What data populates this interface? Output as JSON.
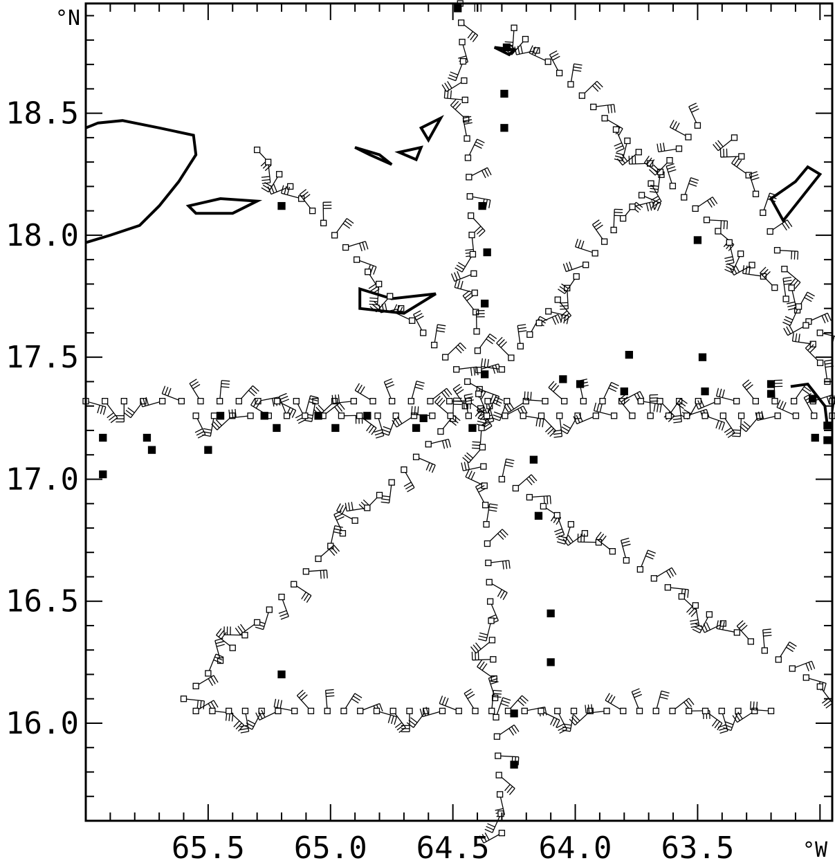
{
  "axes": {
    "x_unit": "°W",
    "y_unit": "°N",
    "x_ticks": [
      {
        "value": 65.5,
        "label": "65.5"
      },
      {
        "value": 65.0,
        "label": "65.0"
      },
      {
        "value": 64.5,
        "label": "64.5"
      },
      {
        "value": 64.0,
        "label": "64.0"
      },
      {
        "value": 63.5,
        "label": "63.5"
      }
    ],
    "y_ticks": [
      {
        "value": 18.5,
        "label": "18.5"
      },
      {
        "value": 18.0,
        "label": "18.0"
      },
      {
        "value": 17.5,
        "label": "17.5"
      },
      {
        "value": 17.0,
        "label": "17.0"
      },
      {
        "value": 16.5,
        "label": "16.5"
      },
      {
        "value": 16.0,
        "label": "16.0"
      }
    ],
    "lon_range": [
      66.0,
      62.95
    ],
    "lat_range": [
      15.6,
      18.95
    ]
  },
  "flight_legs": [
    {
      "name": "north-south",
      "from": [
        64.47,
        18.95
      ],
      "to": [
        64.3,
        15.55
      ],
      "n": 44
    },
    {
      "name": "northwest-diagonal",
      "from": [
        65.3,
        18.35
      ],
      "to": [
        64.35,
        17.3
      ],
      "n": 22
    },
    {
      "name": "northeast-upper-diagonal",
      "from": [
        64.25,
        18.85
      ],
      "to": [
        63.0,
        17.6
      ],
      "n": 28
    },
    {
      "name": "northeast-right-diagonal",
      "from": [
        63.35,
        18.4
      ],
      "to": [
        62.97,
        17.4
      ],
      "n": 14
    },
    {
      "name": "central-northeast",
      "from": [
        64.3,
        17.45
      ],
      "to": [
        63.5,
        18.45
      ],
      "n": 22
    },
    {
      "name": "southwest-diagonal",
      "from": [
        64.45,
        17.3
      ],
      "to": [
        65.6,
        16.1
      ],
      "n": 24
    },
    {
      "name": "southeast-diagonal",
      "from": [
        64.3,
        17.0
      ],
      "to": [
        63.0,
        16.15
      ],
      "n": 24
    },
    {
      "name": "southern-west-east",
      "from": [
        65.55,
        16.05
      ],
      "to": [
        63.2,
        16.05
      ],
      "n": 36
    },
    {
      "name": "east-west-upper",
      "from": [
        66.0,
        17.32
      ],
      "to": [
        62.95,
        17.32
      ],
      "n": 40
    },
    {
      "name": "east-west-lower",
      "from": [
        65.55,
        17.26
      ],
      "to": [
        62.95,
        17.26
      ],
      "n": 36
    }
  ],
  "dropsondes": [
    [
      64.48,
      18.93
    ],
    [
      64.28,
      18.77
    ],
    [
      64.29,
      18.58
    ],
    [
      64.29,
      18.44
    ],
    [
      65.2,
      18.12
    ],
    [
      64.38,
      18.12
    ],
    [
      64.36,
      17.93
    ],
    [
      64.37,
      17.72
    ],
    [
      65.93,
      17.17
    ],
    [
      65.93,
      17.02
    ],
    [
      65.75,
      17.17
    ],
    [
      65.73,
      17.12
    ],
    [
      65.45,
      17.26
    ],
    [
      65.5,
      17.12
    ],
    [
      65.27,
      17.26
    ],
    [
      65.22,
      17.21
    ],
    [
      65.05,
      17.26
    ],
    [
      64.98,
      17.21
    ],
    [
      64.85,
      17.26
    ],
    [
      64.65,
      17.21
    ],
    [
      64.62,
      17.25
    ],
    [
      64.42,
      17.21
    ],
    [
      64.37,
      17.43
    ],
    [
      64.17,
      17.08
    ],
    [
      64.15,
      16.85
    ],
    [
      64.1,
      16.45
    ],
    [
      64.1,
      16.25
    ],
    [
      64.25,
      16.04
    ],
    [
      64.25,
      15.83
    ],
    [
      65.2,
      16.2
    ],
    [
      63.98,
      17.39
    ],
    [
      64.05,
      17.41
    ],
    [
      63.78,
      17.51
    ],
    [
      63.8,
      17.36
    ],
    [
      63.48,
      17.5
    ],
    [
      63.47,
      17.36
    ],
    [
      63.5,
      17.98
    ],
    [
      63.2,
      17.39
    ],
    [
      63.2,
      17.35
    ],
    [
      63.02,
      17.17
    ],
    [
      63.03,
      17.33
    ],
    [
      62.97,
      17.16
    ],
    [
      62.97,
      17.22
    ]
  ]
}
